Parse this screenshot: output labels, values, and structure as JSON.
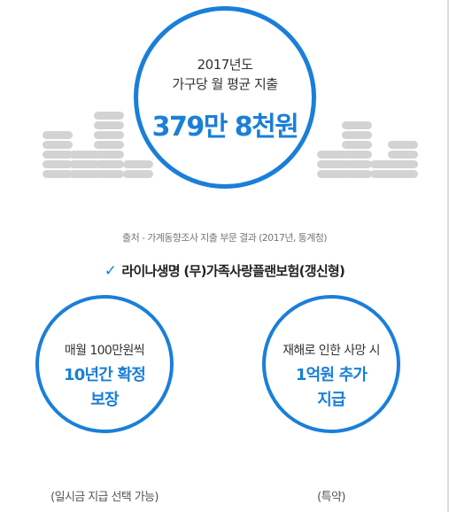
{
  "headline": {
    "year_label": "2017년도",
    "subtitle": "가구당 월 평균 지출",
    "amount": "379만 8천원"
  },
  "source": "출처 - 가계동향조사 지출 부문 결과 (2017년, 통계청)",
  "product": {
    "check_icon": "check-icon",
    "name": "라이나생명 (무)가족사랑플랜보험(갱신형)"
  },
  "benefits": [
    {
      "intro": "매월 100만원씩",
      "highlight_1": "10년간 확정",
      "highlight_2": "보장",
      "note": "(일시금 지급 선택 가능)"
    },
    {
      "intro": "재해로 인한 사망 시",
      "highlight_1": "1억원 추가",
      "highlight_2": "지급",
      "note": "(특약)"
    }
  ],
  "colors": {
    "accent": "#1a7fd8",
    "coin": "#d3d3d3"
  }
}
